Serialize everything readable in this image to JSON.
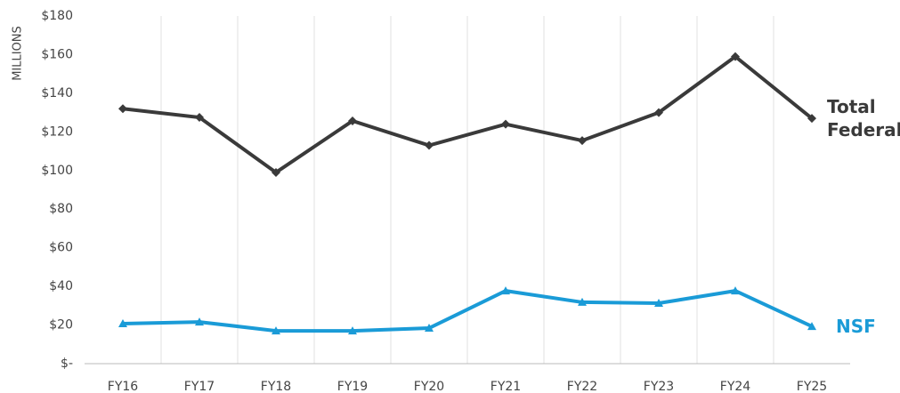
{
  "chart_data": {
    "type": "line",
    "y_axis_label": "MILLIONS",
    "categories": [
      "FY16",
      "FY17",
      "FY18",
      "FY19",
      "FY20",
      "FY21",
      "FY22",
      "FY23",
      "FY24",
      "FY25"
    ],
    "series": [
      {
        "name": "Total Federal",
        "color": "#3a3a3a",
        "marker": "diamond",
        "values": [
          132,
          127.5,
          99,
          125.7,
          113,
          124,
          115.5,
          130,
          159,
          127
        ]
      },
      {
        "name": "NSF",
        "color": "#1a9bd7",
        "marker": "triangle",
        "values": [
          20.7,
          21.6,
          17,
          17,
          18.4,
          37.7,
          31.8,
          31.3,
          37.7,
          19.3
        ]
      }
    ],
    "ylim": [
      0,
      180
    ],
    "yticks": [
      {
        "value": 0,
        "label": "$-"
      },
      {
        "value": 20,
        "label": "$20"
      },
      {
        "value": 40,
        "label": "$40"
      },
      {
        "value": 60,
        "label": "$60"
      },
      {
        "value": 80,
        "label": "$80"
      },
      {
        "value": 100,
        "label": "$100"
      },
      {
        "value": 120,
        "label": "$120"
      },
      {
        "value": 140,
        "label": "$140"
      },
      {
        "value": 160,
        "label": "$160"
      },
      {
        "value": 180,
        "label": "$180"
      }
    ],
    "grid": "vertical"
  }
}
